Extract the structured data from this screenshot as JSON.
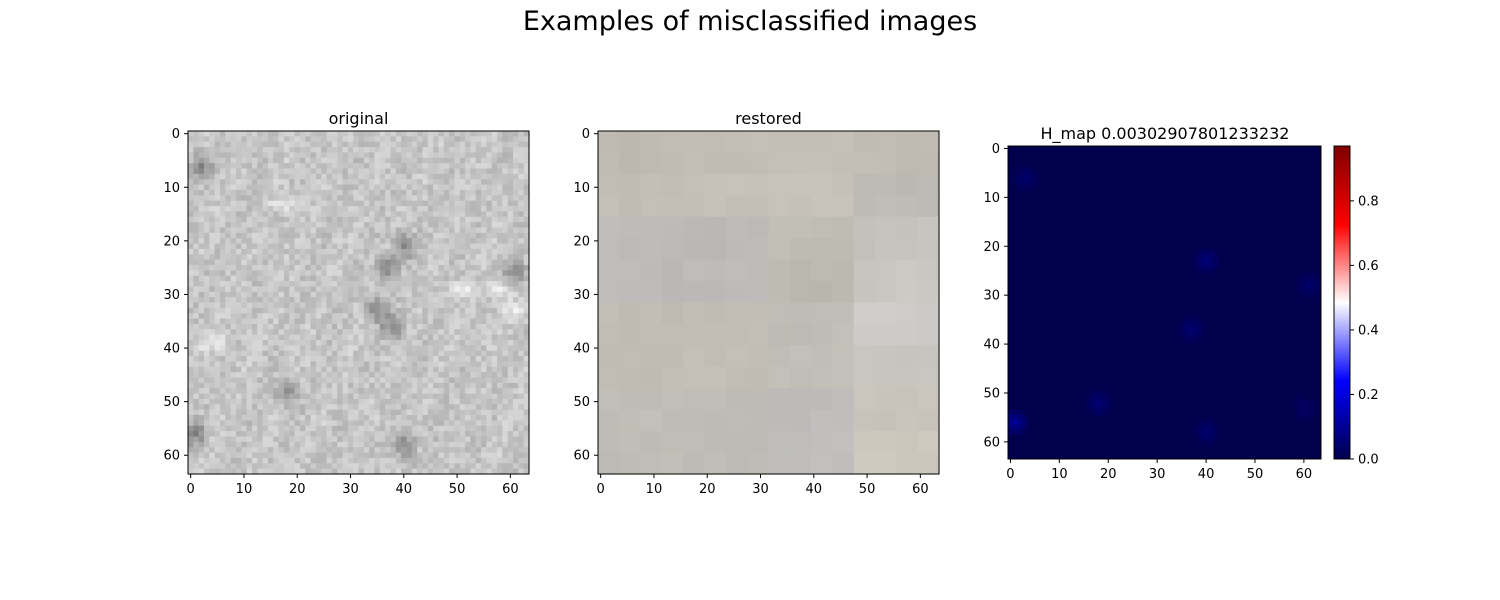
{
  "figure": {
    "title": "Examples of misclassified images"
  },
  "chart_data": [
    {
      "type": "heatmap",
      "title": "original",
      "xlim": [
        0,
        63
      ],
      "ylim": [
        0,
        63
      ],
      "y_inverted": true,
      "x_ticks": [
        0,
        10,
        20,
        30,
        40,
        50,
        60
      ],
      "y_ticks": [
        0,
        10,
        20,
        30,
        40,
        50,
        60
      ],
      "grid": false,
      "image": {
        "size": 64,
        "base_color": "#c6c6c4",
        "texture": "grayscale concrete-like speckle",
        "dark_spots": [
          {
            "x": 2,
            "y": 6
          },
          {
            "x": 40,
            "y": 21
          },
          {
            "x": 37,
            "y": 25
          },
          {
            "x": 38,
            "y": 36
          },
          {
            "x": 35,
            "y": 33
          },
          {
            "x": 18,
            "y": 48
          },
          {
            "x": 40,
            "y": 58
          },
          {
            "x": 1,
            "y": 56
          },
          {
            "x": 61,
            "y": 26
          }
        ],
        "light_spots": [
          {
            "x": 18,
            "y": 13
          },
          {
            "x": 58,
            "y": 29
          },
          {
            "x": 51,
            "y": 29
          },
          {
            "x": 61,
            "y": 33
          },
          {
            "x": 4,
            "y": 39
          }
        ]
      }
    },
    {
      "type": "heatmap",
      "title": "restored",
      "xlim": [
        0,
        63
      ],
      "ylim": [
        0,
        63
      ],
      "y_inverted": true,
      "x_ticks": [
        0,
        10,
        20,
        30,
        40,
        50,
        60
      ],
      "y_ticks": [
        0,
        10,
        20,
        30,
        40,
        50,
        60
      ],
      "grid": false,
      "image": {
        "size": 64,
        "block": 8,
        "cells": [
          [
            "#bfb9b1",
            "#c1bbb3",
            "#c2bcb4",
            "#c3bdb5",
            "#c5c0b8",
            "#c4bfb7",
            "#c1bcb4",
            "#c0bbb3"
          ],
          [
            "#c2bdb5",
            "#c3beb6",
            "#c4bfb7",
            "#c5c0b8",
            "#c7c2ba",
            "#c6c1b9",
            "#bfbcb6",
            "#bdbab4"
          ],
          [
            "#bdbcbb",
            "#bcbbba",
            "#bab9b8",
            "#bbbab9",
            "#c0bdb5",
            "#bfbcb4",
            "#c5c2bd",
            "#c7c4bf"
          ],
          [
            "#bcbbba",
            "#bbbab9",
            "#bcbbba",
            "#bdbcbb",
            "#bcb9b1",
            "#bbb8b0",
            "#c9c6c1",
            "#cbc8c3"
          ],
          [
            "#c1bdb5",
            "#c0bcb4",
            "#c2beb6",
            "#c1bdb5",
            "#bfbcb5",
            "#c1beb7",
            "#ceccc8",
            "#cccac6"
          ],
          [
            "#c2beb6",
            "#c1bdb5",
            "#c3bfb7",
            "#c2beb6",
            "#c2bfb8",
            "#c3c0b9",
            "#c9c6c0",
            "#c8c5bf"
          ],
          [
            "#c0bdb6",
            "#c1beb7",
            "#c0bdb6",
            "#bfbcb5",
            "#bdbcbb",
            "#bebdbc",
            "#c8c4bb",
            "#c9c5bc"
          ],
          [
            "#bfbcb5",
            "#c0bdb6",
            "#bfbcb5",
            "#bebbb4",
            "#bebdbc",
            "#bfbebd",
            "#cecabf",
            "#ccc8bd"
          ]
        ]
      }
    },
    {
      "type": "heatmap",
      "title": "H_map  0.00302907801233232",
      "xlim": [
        0,
        63
      ],
      "ylim": [
        0,
        63
      ],
      "y_inverted": true,
      "x_ticks": [
        0,
        10,
        20,
        30,
        40,
        50,
        60
      ],
      "y_ticks": [
        0,
        10,
        20,
        30,
        40,
        50,
        60
      ],
      "grid": false,
      "colormap": "seismic",
      "image": {
        "size": 64,
        "base_value": 0.0,
        "spots": [
          {
            "x": 1,
            "y": 56,
            "v": 0.1
          },
          {
            "x": 40,
            "y": 23,
            "v": 0.06
          },
          {
            "x": 37,
            "y": 37,
            "v": 0.05
          },
          {
            "x": 18,
            "y": 52,
            "v": 0.05
          },
          {
            "x": 40,
            "y": 58,
            "v": 0.04
          },
          {
            "x": 3,
            "y": 6,
            "v": 0.04
          },
          {
            "x": 61,
            "y": 28,
            "v": 0.04
          },
          {
            "x": 60,
            "y": 53,
            "v": 0.03
          }
        ]
      },
      "colorbar": {
        "range": [
          0.0,
          0.97
        ],
        "ticks": [
          0.0,
          0.2,
          0.4,
          0.6,
          0.8
        ],
        "tick_labels": [
          "0.0",
          "0.2",
          "0.4",
          "0.6",
          "0.8"
        ],
        "colors": [
          "#00004c",
          "#0000ff",
          "#ffffff",
          "#ff0000",
          "#800000"
        ]
      }
    }
  ]
}
